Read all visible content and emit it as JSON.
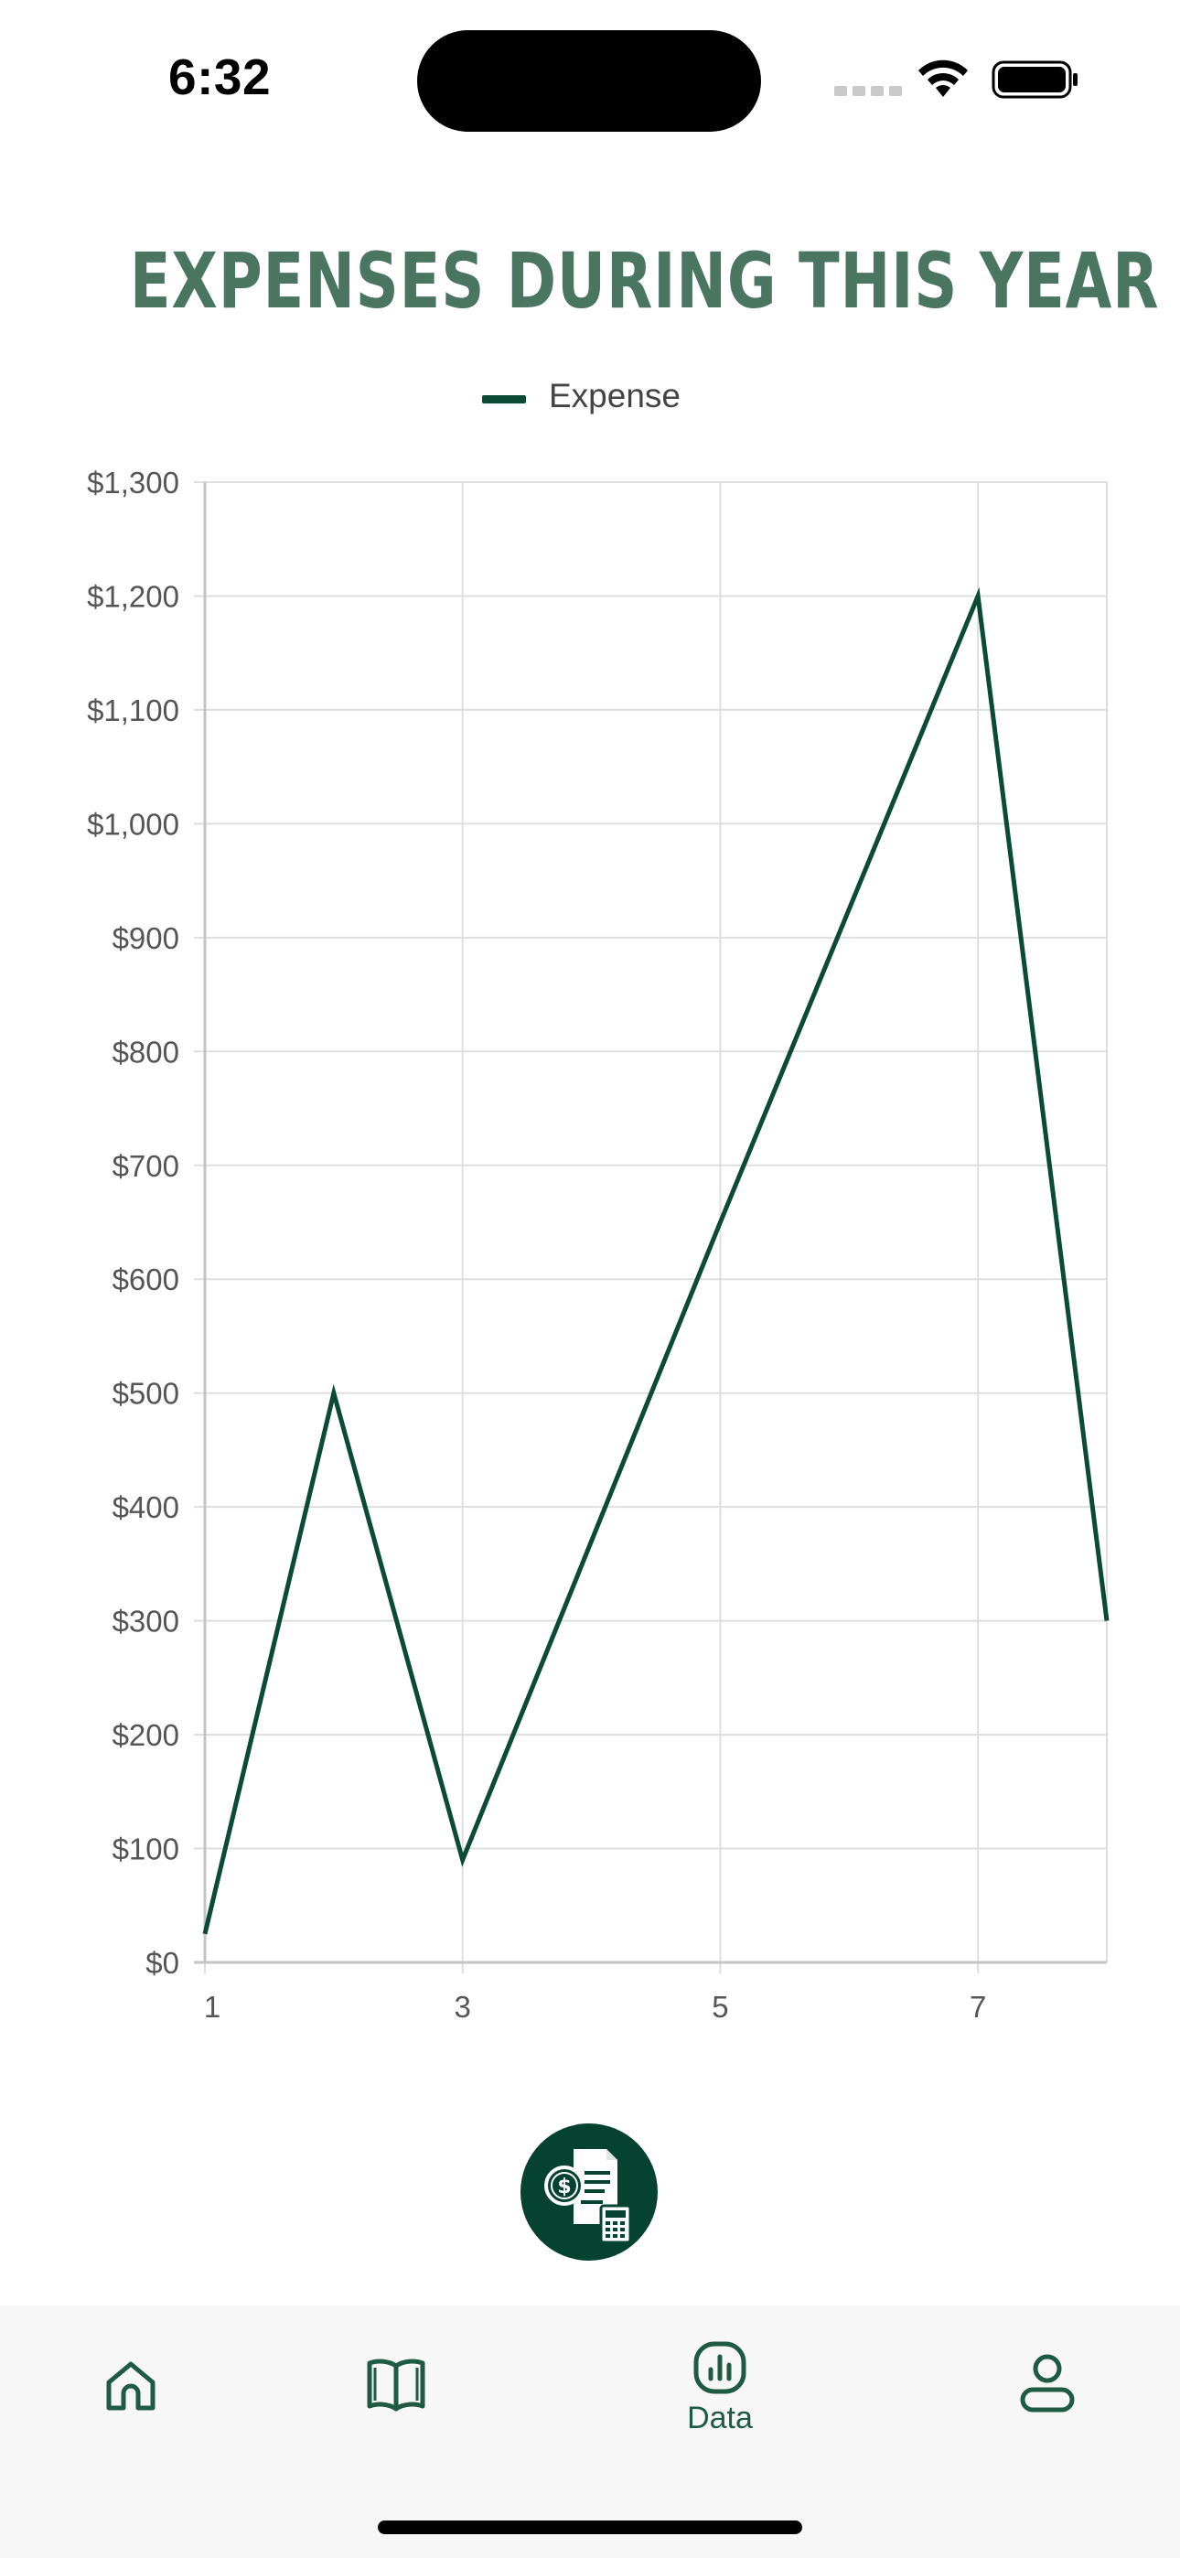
{
  "status_bar": {
    "time": "6:32"
  },
  "chart_data": {
    "type": "line",
    "title": "Expenses During This Year",
    "legend_position": "top",
    "grid": true,
    "x": [
      1,
      2,
      3,
      4,
      5,
      6,
      7,
      8
    ],
    "x_ticks": [
      1,
      3,
      5,
      7
    ],
    "xlim": [
      1,
      8
    ],
    "ylim": [
      0,
      1300
    ],
    "y_ticks": [
      0,
      100,
      200,
      300,
      400,
      500,
      600,
      700,
      800,
      900,
      1000,
      1100,
      1200,
      1300
    ],
    "y_tick_labels": [
      "$0",
      "$100",
      "$200",
      "$300",
      "$400",
      "$500",
      "$600",
      "$700",
      "$800",
      "$900",
      "$1,000",
      "$1,100",
      "$1,200",
      "$1,300"
    ],
    "series": [
      {
        "name": "Expense",
        "color": "#0b4a34",
        "values": [
          25,
          500,
          90,
          370,
          650,
          925,
          1200,
          300
        ]
      }
    ]
  },
  "fab": {
    "icon": "invoice-calculator-icon",
    "color": "#054330"
  },
  "tab_bar": {
    "items": [
      {
        "icon": "home-icon",
        "label": ""
      },
      {
        "icon": "book-icon",
        "label": ""
      },
      {
        "icon": "data-chart-icon",
        "label": "Data"
      },
      {
        "icon": "profile-icon",
        "label": ""
      }
    ],
    "active_color": "#1f5a45"
  }
}
